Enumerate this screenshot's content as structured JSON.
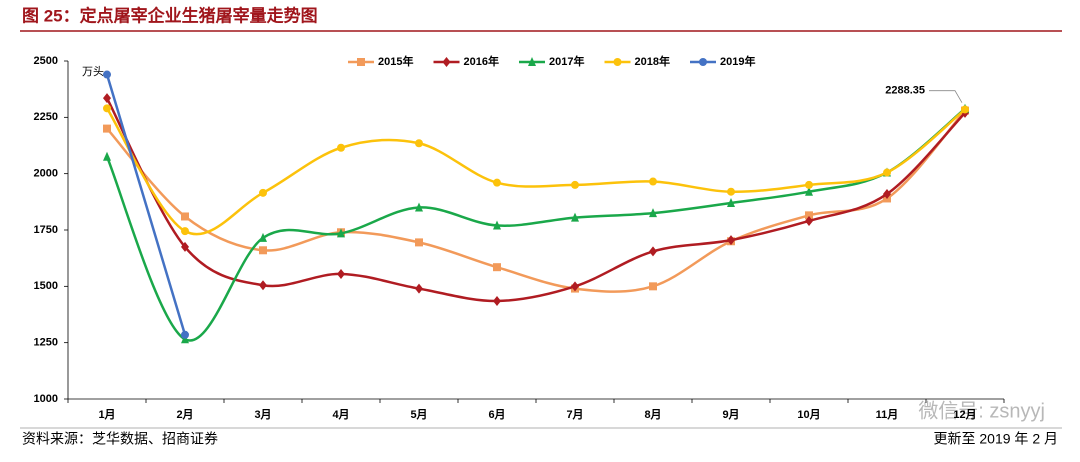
{
  "chart_data": {
    "type": "line",
    "title": "图 25：定点屠宰企业生猪屠宰量走势图",
    "y_unit": "万头",
    "categories": [
      "1月",
      "2月",
      "3月",
      "4月",
      "5月",
      "6月",
      "7月",
      "8月",
      "9月",
      "10月",
      "11月",
      "12月"
    ],
    "series": [
      {
        "name": "2015年",
        "color": "#f29a5a",
        "marker": "square",
        "values": [
          2200,
          1810,
          1660,
          1740,
          1695,
          1585,
          1490,
          1500,
          1700,
          1815,
          1890,
          2280
        ]
      },
      {
        "name": "2016年",
        "color": "#b01c22",
        "marker": "diamond",
        "values": [
          2335,
          1675,
          1505,
          1555,
          1490,
          1435,
          1500,
          1655,
          1705,
          1790,
          1910,
          2270
        ]
      },
      {
        "name": "2017年",
        "color": "#1aa84a",
        "marker": "triangle",
        "values": [
          2075,
          1265,
          1715,
          1735,
          1850,
          1770,
          1805,
          1825,
          1870,
          1920,
          2005,
          2288.35
        ]
      },
      {
        "name": "2018年",
        "color": "#fcc20b",
        "marker": "circle",
        "values": [
          2290,
          1745,
          1915,
          2115,
          2135,
          1960,
          1950,
          1965,
          1920,
          1950,
          2005,
          2285
        ]
      },
      {
        "name": "2019年",
        "color": "#4472c4",
        "marker": "circle",
        "values": [
          2440,
          1285,
          null,
          null,
          null,
          null,
          null,
          null,
          null,
          null,
          null,
          null
        ]
      }
    ],
    "annotation": {
      "text": "2288.35",
      "series": 2,
      "index": 11
    },
    "ylim": [
      1000,
      2500
    ],
    "yticks": [
      1000,
      1250,
      1500,
      1750,
      2000,
      2250,
      2500
    ],
    "source": "资料来源：芝华数据、招商证券",
    "updated": "更新至 2019 年 2 月",
    "watermark": "微信号: zsnyyj"
  }
}
